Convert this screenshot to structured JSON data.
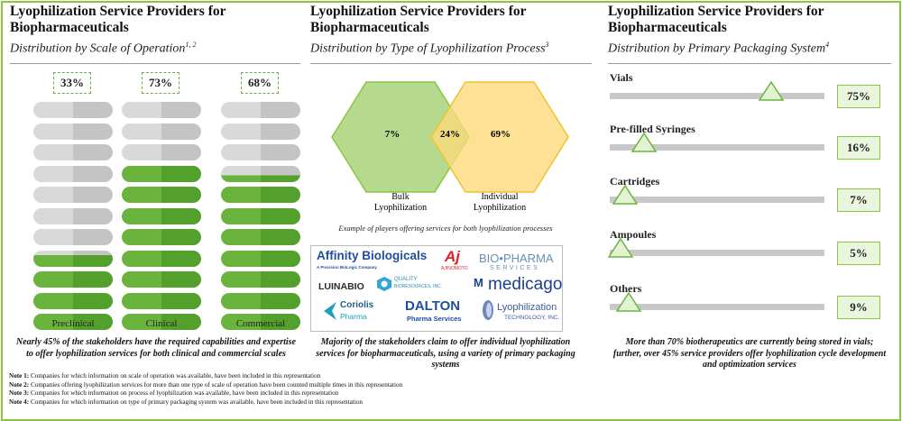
{
  "panels": {
    "scale": {
      "title": "Lyophilization Service Providers for Biopharmaceuticals",
      "subtitle": "Distribution by Scale of Operation",
      "subtitle_sup": "1, 2",
      "caption": "Nearly 45% of the stakeholders have the required capabilities and expertise to offer lyophilization services for both clinical and commercial scales"
    },
    "process": {
      "title": "Lyophilization Service Providers for Biopharmaceuticals",
      "subtitle": "Distribution by Type of Lyophilization Process",
      "subtitle_sup": "3",
      "example_text": "Example of players offering services for both lyophilization processes",
      "caption": "Majority of the stakeholders claim to offer individual lyophilization services for biopharmaceuticals, using a variety of primary packaging systems"
    },
    "packaging": {
      "title": "Lyophilization Service Providers for Biopharmaceuticals",
      "subtitle": "Distribution by Primary Packaging System",
      "subtitle_sup": "4",
      "caption": "More than 70% biotherapeutics are currently being stored in vials; further, over 45% service providers offer lyophilization cycle development and optimization services"
    }
  },
  "chart_data": [
    {
      "type": "bar",
      "categories": [
        "Preclinical",
        "Clinical",
        "Commercial"
      ],
      "values": [
        33,
        73,
        68
      ],
      "value_labels": [
        "33%",
        "73%",
        "68%"
      ],
      "unit": "%",
      "colors": {
        "filled_left": "#6ab43e",
        "filled_right": "#53a02c",
        "empty_left": "#d9d9d9",
        "empty_right": "#c4c4c4"
      }
    },
    {
      "type": "venn",
      "sets": [
        {
          "name": "Bulk Lyophilization",
          "label_line1": "Bulk",
          "label_line2": "Lyophilization",
          "only_value": "7%",
          "color": "#a9d479"
        },
        {
          "name": "Individual Lyophilization",
          "label_line1": "Individual",
          "label_line2": "Lyophilization",
          "only_value": "69%",
          "color": "#fdd97a"
        }
      ],
      "overlap_value": "24%"
    },
    {
      "type": "bar",
      "categories": [
        "Vials",
        "Pre-filled Syringes",
        "Cartridges",
        "Ampoules",
        "Others"
      ],
      "values": [
        75,
        16,
        7,
        5,
        9
      ],
      "value_labels": [
        "75%",
        "16%",
        "7%",
        "5%",
        "9%"
      ],
      "unit": "%",
      "colors": {
        "track": "#c8c8c8",
        "marker_fill": "#e3f2d3",
        "marker_stroke": "#6ab43e",
        "box": "#e9f5dd"
      }
    }
  ],
  "logos": {
    "affinity_main": "Affinity Biologicals",
    "affinity_sub": "A Precision BioLogic Company",
    "ajinomoto": "AJINOMOTO",
    "biopharma": "BIO•PHARMA",
    "biopharma_sub": "SERVICES",
    "lunabio": "LUINABIO",
    "quality1": "QUALITY",
    "quality2": "BIORESOURCES, INC.",
    "medicago": "medicago",
    "coriolis1": "Coriolis",
    "coriolis2": "Pharma",
    "dalton1": "DALTON",
    "dalton2": "Pharma Services",
    "lyo1": "Lyophilization",
    "lyo2": "TECHNOLOGY, INC."
  },
  "notes": [
    {
      "label": "Note 1:",
      "text": " Companies for which information on scale of operation was available, have been included in this representation"
    },
    {
      "label": "Note 2:",
      "text": " Companies offering lyophilization services for more than one type of scale of operation have been counted multiple times in this representation"
    },
    {
      "label": "Note 3:",
      "text": " Companies  for which information on process of lyophilization was available, have been included in this representation"
    },
    {
      "label": "Note 4:",
      "text": " Companies  for which information on type of primary packaging system was available, have been included in this representation"
    }
  ]
}
